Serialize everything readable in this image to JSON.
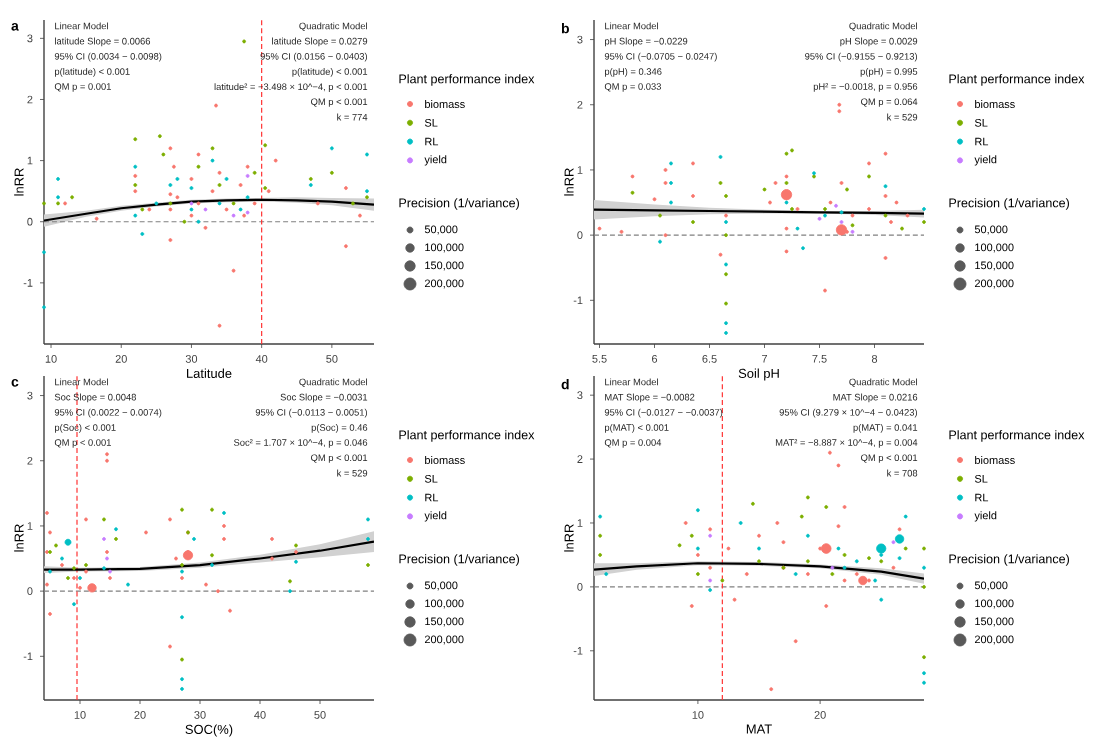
{
  "chart_data": [
    {
      "type": "bubble",
      "title": "a",
      "xlabel": "Latitude",
      "ylabel": "lnRR",
      "legend_title": "Plant performance index",
      "legend": "right",
      "marker": "circle",
      "xlim": [
        9,
        56
      ],
      "xticks": [
        10,
        20,
        30,
        40,
        50
      ],
      "ylim": [
        -2.0,
        3.3
      ],
      "yticks": [
        -1,
        0,
        1,
        2,
        3
      ],
      "size_legend": [
        {
          "value": 50000,
          "label": "50,000"
        },
        {
          "value": 100000,
          "label": "100,000"
        },
        {
          "value": 150000,
          "label": "150,000"
        },
        {
          "value": 200000,
          "label": "200,000"
        }
      ],
      "annotations": [
        "Linear Model",
        "latitude Slope = 0.0066",
        "95% CI (0.0034 − 0.0098)",
        "p(latitude)  < 0.001",
        "QM p =  0.001",
        "Quadratic Model",
        "latitude Slope = 0.0279",
        "95% CI (0.0156 − 0.0403)",
        "p(latitude)  < 0.001",
        "latitude² = −3.498 × 10^−4, p  < 0.001",
        "QM p  < 0.001",
        "k = 774",
        "Precision (1/variance)"
      ],
      "ref_lines": [
        {
          "axis": "y",
          "value": 0,
          "color": "#808080",
          "line_style": "dashed"
        },
        {
          "axis": "x",
          "value": 40,
          "color": "#ff3333",
          "line_style": "dashed"
        }
      ],
      "series": [
        {
          "name": "biomass",
          "color": "#f8766d",
          "x": [
            12,
            16.5,
            22,
            22,
            24,
            27,
            27,
            27,
            27,
            27.5,
            28,
            30,
            30,
            31,
            31,
            32,
            33,
            33.5,
            34,
            34,
            35,
            36,
            37,
            37.5,
            38,
            39,
            41,
            42,
            48,
            52,
            52,
            54
          ],
          "values": [
            0.3,
            0.05,
            0.5,
            0.75,
            0.2,
            -0.3,
            0.2,
            0.45,
            1.2,
            0.9,
            0.4,
            0.1,
            0.7,
            1.1,
            0.3,
            -0.1,
            0.5,
            1.9,
            -1.7,
            0.8,
            0.2,
            -0.8,
            0.6,
            0.1,
            0.9,
            0.3,
            0.5,
            1.0,
            0.3,
            0.55,
            -0.4,
            0.1
          ],
          "sizes": [
            12500,
            12500,
            12500,
            12500,
            12500,
            12500,
            12500,
            12500,
            12500,
            12500,
            12500,
            12500,
            12500,
            12500,
            12500,
            12500,
            12500,
            12500,
            12500,
            12500,
            12500,
            12500,
            12500,
            12500,
            12500,
            12500,
            12500,
            12500,
            12500,
            12500,
            12500,
            12500
          ]
        },
        {
          "name": "SL",
          "color": "#7cae00",
          "x": [
            9,
            11,
            13,
            22,
            22,
            23,
            25.5,
            26,
            27,
            29,
            31,
            33,
            34,
            36,
            37.5,
            39,
            40.5,
            40.5,
            47,
            50,
            55,
            53
          ],
          "values": [
            0.3,
            0.3,
            0.4,
            1.35,
            0.6,
            0.2,
            1.4,
            1.1,
            0.3,
            0.0,
            0.9,
            1.2,
            0.6,
            0.3,
            2.95,
            0.8,
            0.55,
            1.25,
            0.7,
            0.8,
            0.4,
            0.3
          ],
          "sizes": [
            12500,
            12500,
            12500,
            12500,
            12500,
            12500,
            12500,
            12500,
            12500,
            12500,
            12500,
            12500,
            12500,
            12500,
            12500,
            12500,
            12500,
            12500,
            12500,
            12500,
            12500,
            12500
          ]
        },
        {
          "name": "RL",
          "color": "#00bfc4",
          "x": [
            9,
            9,
            11,
            11,
            22,
            22,
            23,
            25,
            27,
            28,
            30,
            30,
            31,
            33,
            34,
            35,
            37,
            38,
            47,
            50,
            55,
            55
          ],
          "values": [
            -1.4,
            -0.5,
            0.7,
            0.4,
            0.9,
            0.1,
            -0.2,
            0.3,
            0.6,
            0.7,
            0.55,
            0.2,
            0.0,
            1.0,
            0.3,
            0.7,
            0.2,
            0.4,
            0.6,
            1.2,
            1.1,
            0.5
          ],
          "sizes": [
            12500,
            12500,
            12500,
            12500,
            12500,
            12500,
            12500,
            12500,
            12500,
            12500,
            12500,
            12500,
            12500,
            12500,
            12500,
            12500,
            12500,
            12500,
            12500,
            12500,
            12500,
            12500
          ]
        },
        {
          "name": "yield",
          "color": "#c77cff",
          "x": [
            30,
            32,
            36,
            38,
            38
          ],
          "values": [
            0.3,
            0.2,
            0.1,
            0.15,
            0.75
          ],
          "sizes": [
            12500,
            12500,
            12500,
            12500,
            12500
          ]
        },
        {
          "type": "line",
          "marker": "none",
          "color": "#000000",
          "x": [
            9,
            15,
            20,
            25,
            30,
            35,
            40,
            45,
            50,
            56
          ],
          "values": [
            0.02,
            0.13,
            0.22,
            0.28,
            0.33,
            0.35,
            0.36,
            0.35,
            0.33,
            0.28
          ],
          "lower": [
            -0.08,
            0.08,
            0.18,
            0.25,
            0.3,
            0.32,
            0.33,
            0.31,
            0.27,
            0.18
          ],
          "upper": [
            0.12,
            0.18,
            0.26,
            0.31,
            0.36,
            0.38,
            0.39,
            0.4,
            0.39,
            0.38
          ]
        }
      ]
    },
    {
      "type": "bubble",
      "title": "b",
      "xlabel": "Soil pH",
      "ylabel": "lnRR",
      "legend_title": "Plant performance index",
      "legend": "right",
      "marker": "circle",
      "xlim": [
        5.45,
        8.45
      ],
      "xticks": [
        5.5,
        6,
        6.5,
        7,
        7.5,
        8
      ],
      "ylim": [
        -1.67,
        3.3
      ],
      "yticks": [
        -1,
        0,
        1,
        2,
        3
      ],
      "size_legend": [
        {
          "value": 50000,
          "label": "50,000"
        },
        {
          "value": 100000,
          "label": "100,000"
        },
        {
          "value": 150000,
          "label": "150,000"
        },
        {
          "value": 200000,
          "label": "200,000"
        }
      ],
      "annotations": [
        "Linear Model",
        "pH Slope = −0.0229",
        "95% CI (−0.0705 − 0.0247)",
        "p(pH) = 0.346",
        "QM p = 0.033",
        "Quadratic Model",
        "pH Slope = 0.0029",
        "95% CI (−0.9155 − 0.9213)",
        "p(pH) = 0.995",
        "pH² = −0.0018, p = 0.956",
        "QM p = 0.064",
        "k = 529",
        "Precision (1/variance)"
      ],
      "ref_lines": [
        {
          "axis": "y",
          "value": 0,
          "color": "#808080",
          "line_style": "dashed"
        }
      ],
      "series": [
        {
          "name": "biomass",
          "color": "#f8766d",
          "x": [
            5.5,
            5.7,
            5.8,
            6.0,
            6.1,
            6.1,
            6.1,
            6.35,
            6.35,
            6.6,
            6.65,
            7.05,
            7.1,
            7.2,
            7.2,
            7.2,
            7.3,
            7.55,
            7.6,
            7.7,
            7.75,
            7.8,
            7.95,
            7.95,
            8.1,
            8.1,
            8.1,
            8.15,
            8.2,
            7.68,
            7.68,
            8.3,
            7.2,
            7.7
          ],
          "values": [
            0.1,
            0.05,
            0.9,
            0.55,
            1.0,
            0.8,
            0.0,
            1.1,
            0.6,
            -0.3,
            0.3,
            0.5,
            0.8,
            0.9,
            -0.25,
            0.1,
            0.4,
            -0.85,
            0.5,
            0.8,
            0.05,
            0.3,
            1.1,
            0.4,
            1.25,
            -0.35,
            0.6,
            0.2,
            0.5,
            2.0,
            1.9,
            0.3,
            0.62,
            0.08
          ],
          "sizes": [
            12500,
            12500,
            12500,
            12500,
            12500,
            12500,
            12500,
            12500,
            12500,
            12500,
            12500,
            12500,
            12500,
            12500,
            12500,
            12500,
            12500,
            12500,
            12500,
            12500,
            12500,
            12500,
            12500,
            12500,
            12500,
            12500,
            12500,
            12500,
            12500,
            12500,
            12500,
            12500,
            150000,
            150000
          ]
        },
        {
          "name": "SL",
          "color": "#7cae00",
          "x": [
            5.8,
            6.05,
            6.35,
            6.6,
            6.65,
            6.65,
            6.65,
            6.65,
            7.0,
            7.2,
            7.2,
            7.25,
            7.25,
            7.45,
            7.55,
            7.75,
            7.8,
            7.95,
            8.1,
            8.25,
            8.45
          ],
          "values": [
            0.65,
            0.3,
            0.2,
            0.8,
            0.6,
            -0.6,
            -1.05,
            0.0,
            0.7,
            1.25,
            0.8,
            1.3,
            0.4,
            0.9,
            0.4,
            0.7,
            0.15,
            0.9,
            0.3,
            0.1,
            0.2
          ],
          "sizes": [
            12500,
            12500,
            12500,
            12500,
            12500,
            12500,
            12500,
            12500,
            12500,
            12500,
            12500,
            12500,
            12500,
            12500,
            12500,
            12500,
            12500,
            12500,
            12500,
            12500,
            12500
          ]
        },
        {
          "name": "RL",
          "color": "#00bfc4",
          "x": [
            6.05,
            6.15,
            6.15,
            6.15,
            6.6,
            6.65,
            6.65,
            6.65,
            6.65,
            7.2,
            7.3,
            7.35,
            7.45,
            7.55,
            7.7,
            8.1,
            8.45
          ],
          "values": [
            -0.1,
            1.1,
            0.8,
            0.5,
            1.2,
            -0.45,
            -1.35,
            -1.5,
            0.2,
            0.5,
            0.1,
            -0.2,
            0.95,
            0.3,
            0.35,
            0.75,
            0.4
          ],
          "sizes": [
            12500,
            12500,
            12500,
            12500,
            12500,
            12500,
            12500,
            12500,
            12500,
            12500,
            12500,
            12500,
            12500,
            12500,
            12500,
            12500,
            12500
          ]
        },
        {
          "name": "yield",
          "color": "#c77cff",
          "x": [
            7.65,
            7.7,
            7.5,
            7.8
          ],
          "values": [
            0.45,
            0.2,
            0.25,
            0.05
          ],
          "sizes": [
            12500,
            12500,
            12500,
            12500
          ]
        },
        {
          "type": "line",
          "marker": "none",
          "color": "#000000",
          "x": [
            5.45,
            6,
            6.5,
            7,
            7.5,
            8,
            8.45
          ],
          "values": [
            0.39,
            0.38,
            0.37,
            0.36,
            0.35,
            0.34,
            0.33
          ],
          "lower": [
            0.24,
            0.29,
            0.32,
            0.33,
            0.33,
            0.31,
            0.27
          ],
          "upper": [
            0.54,
            0.47,
            0.42,
            0.39,
            0.37,
            0.37,
            0.39
          ]
        }
      ]
    },
    {
      "type": "bubble",
      "title": "c",
      "xlabel": "SOC(%)",
      "ylabel": "lnRR",
      "legend_title": "Plant performance index",
      "legend": "right",
      "marker": "circle",
      "xlim": [
        4,
        59
      ],
      "xticks": [
        10,
        20,
        30,
        40,
        50
      ],
      "ylim": [
        -1.67,
        3.3
      ],
      "yticks": [
        -1,
        0,
        1,
        2,
        3
      ],
      "size_legend": [
        {
          "value": 50000,
          "label": "50,000"
        },
        {
          "value": 100000,
          "label": "100,000"
        },
        {
          "value": 150000,
          "label": "150,000"
        },
        {
          "value": 200000,
          "label": "200,000"
        }
      ],
      "annotations": [
        "Linear Model",
        "Soc Slope = 0.0048",
        "95% CI (0.0022 − 0.0074)",
        "p(Soc)  < 0.001",
        "QM p  < 0.001",
        "Quadratic Model",
        "Soc Slope = −0.0031",
        "95% CI (−0.0113 − 0.0051)",
        "p(Soc) = 0.46",
        "Soc² = 1.707 × 10^−4, p = 0.046",
        "QM p  < 0.001",
        "k = 529",
        "Precision (1/variance)"
      ],
      "ref_lines": [
        {
          "axis": "y",
          "value": 0,
          "color": "#808080",
          "line_style": "dashed"
        },
        {
          "axis": "x",
          "value": 9.5,
          "color": "#ff3333",
          "line_style": "dashed"
        }
      ],
      "series": [
        {
          "name": "biomass",
          "color": "#f8766d",
          "x": [
            4.5,
            4.5,
            4.5,
            5,
            5,
            7,
            9,
            10,
            11,
            11,
            14.5,
            14.5,
            14.5,
            15,
            21,
            25,
            25,
            26,
            27,
            28,
            28,
            31,
            34,
            34,
            35,
            42,
            42,
            46,
            33,
            12,
            28
          ],
          "values": [
            1.2,
            0.6,
            0.1,
            -0.35,
            0.9,
            0.4,
            0.2,
            0.05,
            0.3,
            1.1,
            2.1,
            2.0,
            0.6,
            0.2,
            0.9,
            1.1,
            -0.85,
            0.5,
            0.2,
            0.6,
            0.9,
            0.1,
            1.0,
            0.8,
            -0.3,
            0.8,
            0.5,
            0.6,
            0.0,
            0.05,
            0.55
          ],
          "sizes": [
            12500,
            12500,
            12500,
            12500,
            12500,
            12500,
            12500,
            12500,
            12500,
            12500,
            12500,
            12500,
            12500,
            12500,
            12500,
            12500,
            12500,
            12500,
            12500,
            12500,
            12500,
            12500,
            12500,
            12500,
            12500,
            12500,
            12500,
            12500,
            12500,
            100000,
            120000
          ]
        },
        {
          "name": "SL",
          "color": "#7cae00",
          "x": [
            5,
            6,
            8,
            9,
            11,
            14,
            16,
            27,
            27,
            27,
            28,
            32,
            32,
            45,
            46,
            58
          ],
          "values": [
            0.6,
            0.7,
            0.2,
            0.35,
            0.4,
            1.1,
            0.8,
            1.25,
            -1.05,
            0.4,
            0.9,
            1.25,
            0.55,
            0.15,
            0.7,
            0.4
          ],
          "sizes": [
            12500,
            12500,
            12500,
            12500,
            12500,
            12500,
            12500,
            12500,
            12500,
            12500,
            12500,
            12500,
            12500,
            12500,
            12500,
            12500
          ]
        },
        {
          "name": "RL",
          "color": "#00bfc4",
          "x": [
            5,
            7,
            8,
            9,
            10,
            14,
            16,
            18,
            27,
            27,
            27,
            27,
            29,
            32,
            34,
            45,
            46,
            58,
            58
          ],
          "values": [
            0.3,
            0.5,
            0.75,
            -0.2,
            0.2,
            0.35,
            0.95,
            0.1,
            -1.35,
            -1.5,
            -0.4,
            0.3,
            0.8,
            0.4,
            1.2,
            0.0,
            0.45,
            1.1,
            0.8
          ],
          "sizes": [
            12500,
            12500,
            50000,
            12500,
            12500,
            12500,
            12500,
            12500,
            12500,
            12500,
            12500,
            12500,
            12500,
            12500,
            12500,
            12500,
            12500,
            12500,
            12500
          ]
        },
        {
          "name": "yield",
          "color": "#c77cff",
          "x": [
            14,
            14.5,
            15
          ],
          "values": [
            0.8,
            0.5,
            0.3
          ],
          "sizes": [
            12500,
            12500,
            12500
          ]
        },
        {
          "type": "line",
          "marker": "none",
          "color": "#000000",
          "x": [
            4,
            10,
            20,
            30,
            40,
            50,
            59
          ],
          "values": [
            0.33,
            0.33,
            0.34,
            0.4,
            0.5,
            0.62,
            0.76
          ],
          "lower": [
            0.28,
            0.3,
            0.31,
            0.36,
            0.44,
            0.52,
            0.6
          ],
          "upper": [
            0.38,
            0.36,
            0.37,
            0.44,
            0.56,
            0.72,
            0.92
          ]
        }
      ]
    },
    {
      "type": "bubble",
      "title": "d",
      "xlabel": "MAT",
      "ylabel": "lnRR",
      "legend_title": "Plant performance index",
      "legend": "right",
      "marker": "circle",
      "xlim": [
        1.5,
        28.5
      ],
      "xticks": [
        10,
        20
      ],
      "ylim": [
        -1.77,
        3.3
      ],
      "yticks": [
        -1,
        0,
        1,
        2,
        3
      ],
      "size_legend": [
        {
          "value": 50000,
          "label": "50,000"
        },
        {
          "value": 100000,
          "label": "100,000"
        },
        {
          "value": 150000,
          "label": "150,000"
        },
        {
          "value": 200000,
          "label": "200,000"
        }
      ],
      "annotations": [
        "Linear Model",
        "MAT Slope = −0.0082",
        "95% CI (−0.0127 − −0.0037)",
        "p(MAT)  < 0.001",
        "QM p = 0.004",
        "Quadratic Model",
        "MAT Slope = 0.0216",
        "95% CI (9.279 × 10^−4 − 0.0423)",
        "p(MAT) = 0.041",
        "MAT² = −8.887 × 10^−4, p = 0.004",
        "QM p  < 0.001",
        "k = 708",
        "Precision (1/variance)"
      ],
      "ref_lines": [
        {
          "axis": "y",
          "value": 0,
          "color": "#808080",
          "line_style": "dashed"
        },
        {
          "axis": "x",
          "value": 12,
          "color": "#ff3333",
          "line_style": "dashed"
        }
      ],
      "series": [
        {
          "name": "biomass",
          "color": "#f8766d",
          "x": [
            9,
            9.5,
            10,
            11,
            11,
            12.5,
            13,
            14,
            15,
            16,
            16.5,
            17,
            17,
            18,
            19,
            20,
            20.5,
            21.5,
            22,
            22,
            23,
            24,
            26,
            26.5,
            20.8,
            21.5,
            20.5,
            23.5
          ],
          "values": [
            1.0,
            -0.3,
            0.5,
            0.3,
            0.9,
            0.6,
            -0.2,
            0.2,
            0.8,
            -1.6,
            1.0,
            0.3,
            0.7,
            -0.85,
            0.2,
            0.6,
            -0.3,
            0.95,
            1.25,
            0.1,
            0.2,
            0.1,
            0.3,
            0.9,
            2.1,
            1.9,
            0.6,
            0.1
          ],
          "sizes": [
            12500,
            12500,
            12500,
            12500,
            12500,
            12500,
            12500,
            12500,
            12500,
            12500,
            12500,
            12500,
            12500,
            12500,
            12500,
            12500,
            12500,
            12500,
            12500,
            12500,
            12500,
            12500,
            12500,
            12500,
            12500,
            12500,
            130000,
            100000
          ]
        },
        {
          "name": "SL",
          "color": "#7cae00",
          "x": [
            2,
            2,
            8.5,
            9.5,
            10,
            12,
            14.5,
            15,
            17,
            18.5,
            19,
            19,
            20.5,
            21,
            22,
            24,
            25,
            27,
            28.5,
            28.5,
            28.5
          ],
          "values": [
            0.8,
            0.5,
            0.65,
            0.8,
            0.2,
            0.1,
            1.3,
            0.4,
            0.3,
            1.1,
            1.4,
            0.4,
            1.25,
            0.2,
            0.5,
            0.45,
            0.4,
            0.6,
            0.6,
            -1.1,
            0.0
          ],
          "sizes": [
            12500,
            12500,
            12500,
            12500,
            12500,
            12500,
            12500,
            12500,
            12500,
            12500,
            12500,
            12500,
            12500,
            12500,
            12500,
            12500,
            12500,
            12500,
            12500,
            12500,
            12500
          ]
        },
        {
          "name": "RL",
          "color": "#00bfc4",
          "x": [
            2,
            2.5,
            10,
            10,
            11,
            13.5,
            15,
            18,
            19,
            21.5,
            22,
            23,
            24.5,
            25,
            25,
            26.5,
            27,
            28.5,
            28.5,
            28.5,
            25,
            26.5
          ],
          "values": [
            1.1,
            0.2,
            1.2,
            0.6,
            -0.05,
            1.0,
            0.6,
            0.2,
            0.8,
            0.6,
            0.3,
            0.4,
            0.1,
            0.5,
            -0.2,
            0.45,
            1.1,
            -1.35,
            -1.5,
            0.3,
            0.6,
            0.75
          ],
          "sizes": [
            12500,
            12500,
            12500,
            12500,
            12500,
            12500,
            12500,
            12500,
            12500,
            12500,
            12500,
            12500,
            12500,
            12500,
            12500,
            12500,
            12500,
            12500,
            12500,
            12500,
            120000,
            100000
          ]
        },
        {
          "name": "yield",
          "color": "#c77cff",
          "x": [
            11,
            11,
            21,
            26
          ],
          "values": [
            0.8,
            0.1,
            0.3,
            0.7
          ],
          "sizes": [
            12500,
            12500,
            12500,
            12500
          ]
        },
        {
          "type": "line",
          "marker": "none",
          "color": "#000000",
          "x": [
            1.5,
            5,
            10,
            15,
            20,
            25,
            28.5
          ],
          "values": [
            0.27,
            0.32,
            0.37,
            0.36,
            0.32,
            0.24,
            0.13
          ],
          "lower": [
            0.17,
            0.27,
            0.34,
            0.33,
            0.29,
            0.19,
            0.05
          ],
          "upper": [
            0.37,
            0.37,
            0.4,
            0.39,
            0.35,
            0.29,
            0.21
          ]
        }
      ]
    }
  ]
}
